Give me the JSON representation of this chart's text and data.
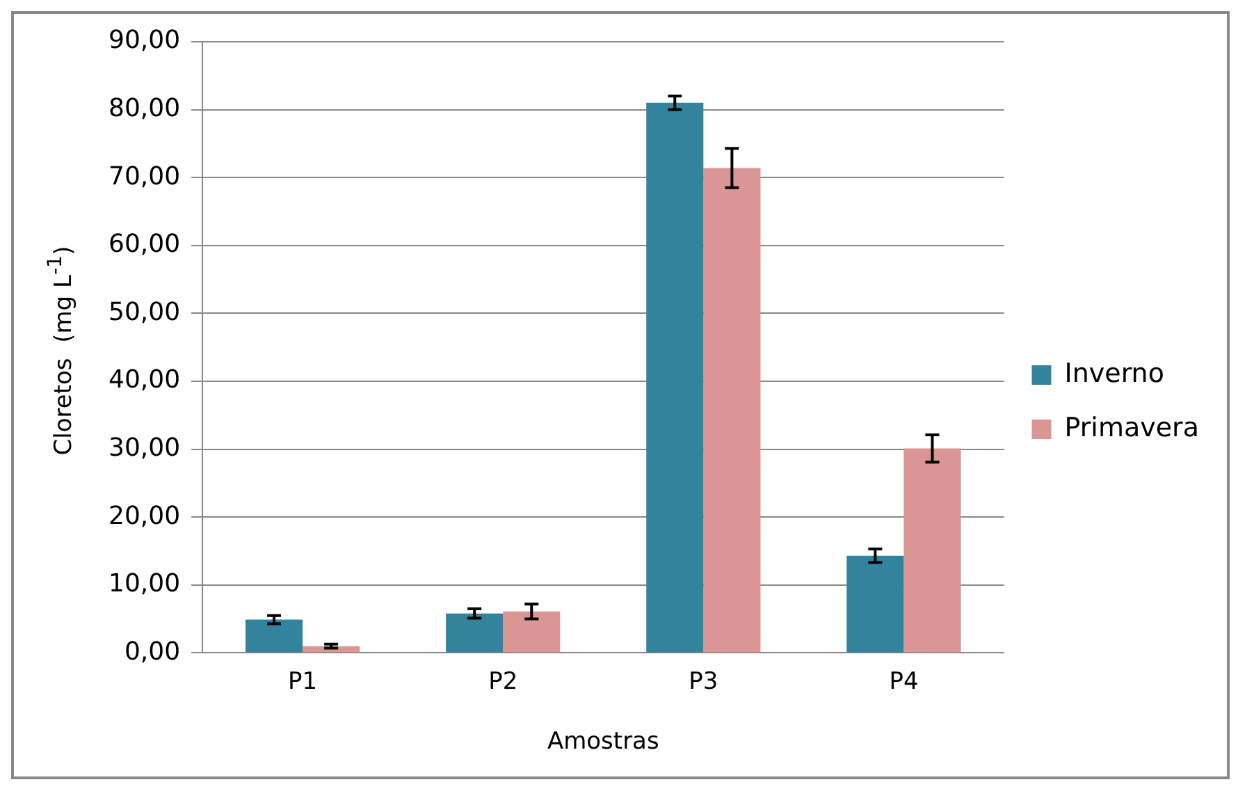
{
  "chart_data": {
    "type": "bar",
    "xlabel": "Amostras",
    "ylabel": "Cloretos  (mg L$^{-1}$)",
    "categories": [
      "P1",
      "P2",
      "P3",
      "P4"
    ],
    "series": [
      {
        "name": "Inverno",
        "color": "#31849b",
        "values": [
          4.9,
          5.8,
          81.0,
          14.3
        ],
        "errors": [
          0.6,
          0.7,
          1.0,
          1.0
        ]
      },
      {
        "name": "Primavera",
        "color": "#d99694",
        "values": [
          1.0,
          6.1,
          71.4,
          30.1
        ],
        "errors": [
          0.3,
          1.1,
          2.9,
          2.0
        ]
      }
    ],
    "ylim": [
      0,
      90
    ],
    "yticks": [
      {
        "value": 0,
        "label": "0,00"
      },
      {
        "value": 10,
        "label": "10,00"
      },
      {
        "value": 20,
        "label": "20,00"
      },
      {
        "value": 30,
        "label": "30,00"
      },
      {
        "value": 40,
        "label": "40,00"
      },
      {
        "value": 50,
        "label": "50,00"
      },
      {
        "value": 60,
        "label": "60,00"
      },
      {
        "value": 70,
        "label": "70,00"
      },
      {
        "value": 80,
        "label": "80,00"
      },
      {
        "value": 90,
        "label": "90,00"
      }
    ],
    "grid": "y",
    "legend": "right"
  }
}
